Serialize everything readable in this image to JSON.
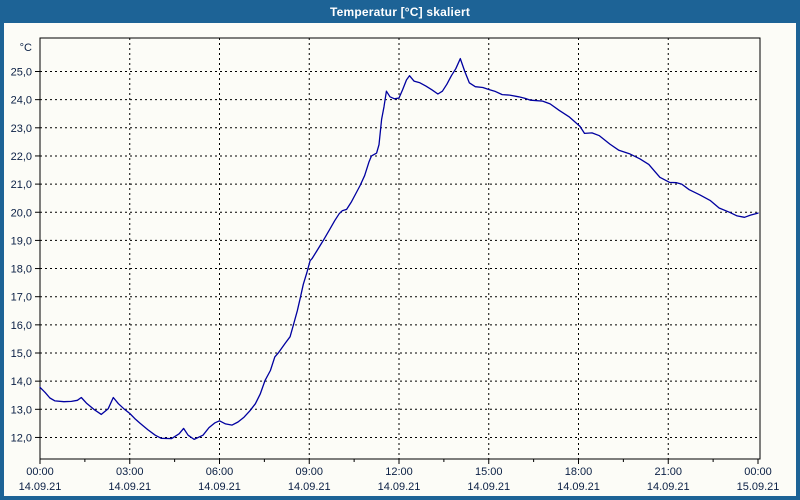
{
  "window": {
    "title": "Temperatur [°C] skaliert"
  },
  "chart_data": {
    "type": "line",
    "title": "Temperatur [°C] skaliert",
    "unit_label": "°C",
    "grid": "dashed",
    "legend": "none",
    "colors": {
      "titlebar": "#1d6396",
      "frame": "#1d6396",
      "background": "#fcfcf7",
      "plot_border": "#000000",
      "grid_line": "#000000",
      "tick_label": "#0a1f44",
      "series_line": "#0000a0",
      "title_text": "#ffffff"
    },
    "x_axis": {
      "range_hours": [
        0,
        24
      ],
      "major_tick_hours": 3,
      "minor_tick_hours": 1.5,
      "ticks": [
        {
          "hour": 0,
          "time": "00:00",
          "date": "14.09.21"
        },
        {
          "hour": 3,
          "time": "03:00",
          "date": "14.09.21"
        },
        {
          "hour": 6,
          "time": "06:00",
          "date": "14.09.21"
        },
        {
          "hour": 9,
          "time": "09:00",
          "date": "14.09.21"
        },
        {
          "hour": 12,
          "time": "12:00",
          "date": "14.09.21"
        },
        {
          "hour": 15,
          "time": "15:00",
          "date": "14.09.21"
        },
        {
          "hour": 18,
          "time": "18:00",
          "date": "14.09.21"
        },
        {
          "hour": 21,
          "time": "21:00",
          "date": "14.09.21"
        },
        {
          "hour": 24,
          "time": "00:00",
          "date": "15.09.21"
        }
      ]
    },
    "y_axis": {
      "min": 12,
      "max": 25,
      "step": 1,
      "ticks": [
        {
          "value": 25,
          "label": "25,0"
        },
        {
          "value": 24,
          "label": "24,0"
        },
        {
          "value": 23,
          "label": "23,0"
        },
        {
          "value": 22,
          "label": "22,0"
        },
        {
          "value": 21,
          "label": "21,0"
        },
        {
          "value": 20,
          "label": "20,0"
        },
        {
          "value": 19,
          "label": "19,0"
        },
        {
          "value": 18,
          "label": "18,0"
        },
        {
          "value": 17,
          "label": "17,0"
        },
        {
          "value": 16,
          "label": "16,0"
        },
        {
          "value": 15,
          "label": "15,0"
        },
        {
          "value": 14,
          "label": "14,0"
        },
        {
          "value": 13,
          "label": "13,0"
        },
        {
          "value": 12,
          "label": "12,0"
        }
      ]
    },
    "series": [
      {
        "name": "Temperatur",
        "color": "#0000a0",
        "points_hour_temp": [
          [
            0.0,
            13.78
          ],
          [
            0.17,
            13.6
          ],
          [
            0.33,
            13.4
          ],
          [
            0.5,
            13.3
          ],
          [
            0.8,
            13.27
          ],
          [
            1.05,
            13.28
          ],
          [
            1.25,
            13.32
          ],
          [
            1.38,
            13.42
          ],
          [
            1.55,
            13.22
          ],
          [
            1.8,
            13.0
          ],
          [
            2.05,
            12.82
          ],
          [
            2.28,
            13.02
          ],
          [
            2.45,
            13.42
          ],
          [
            2.62,
            13.2
          ],
          [
            2.8,
            13.02
          ],
          [
            3.0,
            12.85
          ],
          [
            3.17,
            12.67
          ],
          [
            3.35,
            12.5
          ],
          [
            3.6,
            12.28
          ],
          [
            3.85,
            12.08
          ],
          [
            4.05,
            11.97
          ],
          [
            4.4,
            11.96
          ],
          [
            4.65,
            12.13
          ],
          [
            4.8,
            12.32
          ],
          [
            4.95,
            12.08
          ],
          [
            5.15,
            11.93
          ],
          [
            5.45,
            12.08
          ],
          [
            5.65,
            12.35
          ],
          [
            5.85,
            12.52
          ],
          [
            6.0,
            12.59
          ],
          [
            6.2,
            12.48
          ],
          [
            6.42,
            12.44
          ],
          [
            6.62,
            12.55
          ],
          [
            6.82,
            12.72
          ],
          [
            7.02,
            12.95
          ],
          [
            7.2,
            13.2
          ],
          [
            7.36,
            13.54
          ],
          [
            7.52,
            14.02
          ],
          [
            7.7,
            14.38
          ],
          [
            7.85,
            14.86
          ],
          [
            7.98,
            15.02
          ],
          [
            8.2,
            15.35
          ],
          [
            8.36,
            15.58
          ],
          [
            8.47,
            16.0
          ],
          [
            8.6,
            16.5
          ],
          [
            8.7,
            16.96
          ],
          [
            8.8,
            17.44
          ],
          [
            8.92,
            17.86
          ],
          [
            9.03,
            18.28
          ],
          [
            9.1,
            18.36
          ],
          [
            9.25,
            18.62
          ],
          [
            9.47,
            19.0
          ],
          [
            9.7,
            19.42
          ],
          [
            9.85,
            19.7
          ],
          [
            10.0,
            19.95
          ],
          [
            10.1,
            20.05
          ],
          [
            10.25,
            20.1
          ],
          [
            10.4,
            20.35
          ],
          [
            10.55,
            20.65
          ],
          [
            10.7,
            20.95
          ],
          [
            10.85,
            21.3
          ],
          [
            11.0,
            21.8
          ],
          [
            11.08,
            22.0
          ],
          [
            11.25,
            22.1
          ],
          [
            11.33,
            22.4
          ],
          [
            11.42,
            23.3
          ],
          [
            11.5,
            23.75
          ],
          [
            11.58,
            24.3
          ],
          [
            11.7,
            24.1
          ],
          [
            11.85,
            24.03
          ],
          [
            12.0,
            24.06
          ],
          [
            12.12,
            24.35
          ],
          [
            12.25,
            24.7
          ],
          [
            12.35,
            24.85
          ],
          [
            12.5,
            24.66
          ],
          [
            12.7,
            24.6
          ],
          [
            12.9,
            24.48
          ],
          [
            13.1,
            24.35
          ],
          [
            13.3,
            24.2
          ],
          [
            13.45,
            24.3
          ],
          [
            13.6,
            24.55
          ],
          [
            13.75,
            24.85
          ],
          [
            13.9,
            25.1
          ],
          [
            14.05,
            25.46
          ],
          [
            14.2,
            25.0
          ],
          [
            14.35,
            24.6
          ],
          [
            14.55,
            24.46
          ],
          [
            14.8,
            24.43
          ],
          [
            15.0,
            24.36
          ],
          [
            15.2,
            24.3
          ],
          [
            15.45,
            24.18
          ],
          [
            15.7,
            24.16
          ],
          [
            16.0,
            24.1
          ],
          [
            16.2,
            24.05
          ],
          [
            16.4,
            23.98
          ],
          [
            16.8,
            23.95
          ],
          [
            17.05,
            23.85
          ],
          [
            17.35,
            23.62
          ],
          [
            17.7,
            23.38
          ],
          [
            18.05,
            23.05
          ],
          [
            18.2,
            22.8
          ],
          [
            18.45,
            22.82
          ],
          [
            18.7,
            22.72
          ],
          [
            19.05,
            22.42
          ],
          [
            19.35,
            22.2
          ],
          [
            19.7,
            22.08
          ],
          [
            20.05,
            21.9
          ],
          [
            20.35,
            21.7
          ],
          [
            20.55,
            21.45
          ],
          [
            20.72,
            21.24
          ],
          [
            21.05,
            21.06
          ],
          [
            21.28,
            21.05
          ],
          [
            21.45,
            21.0
          ],
          [
            21.7,
            20.8
          ],
          [
            22.05,
            20.62
          ],
          [
            22.4,
            20.42
          ],
          [
            22.7,
            20.15
          ],
          [
            23.05,
            20.0
          ],
          [
            23.3,
            19.87
          ],
          [
            23.55,
            19.82
          ],
          [
            23.75,
            19.9
          ],
          [
            24.0,
            19.97
          ]
        ]
      }
    ]
  }
}
